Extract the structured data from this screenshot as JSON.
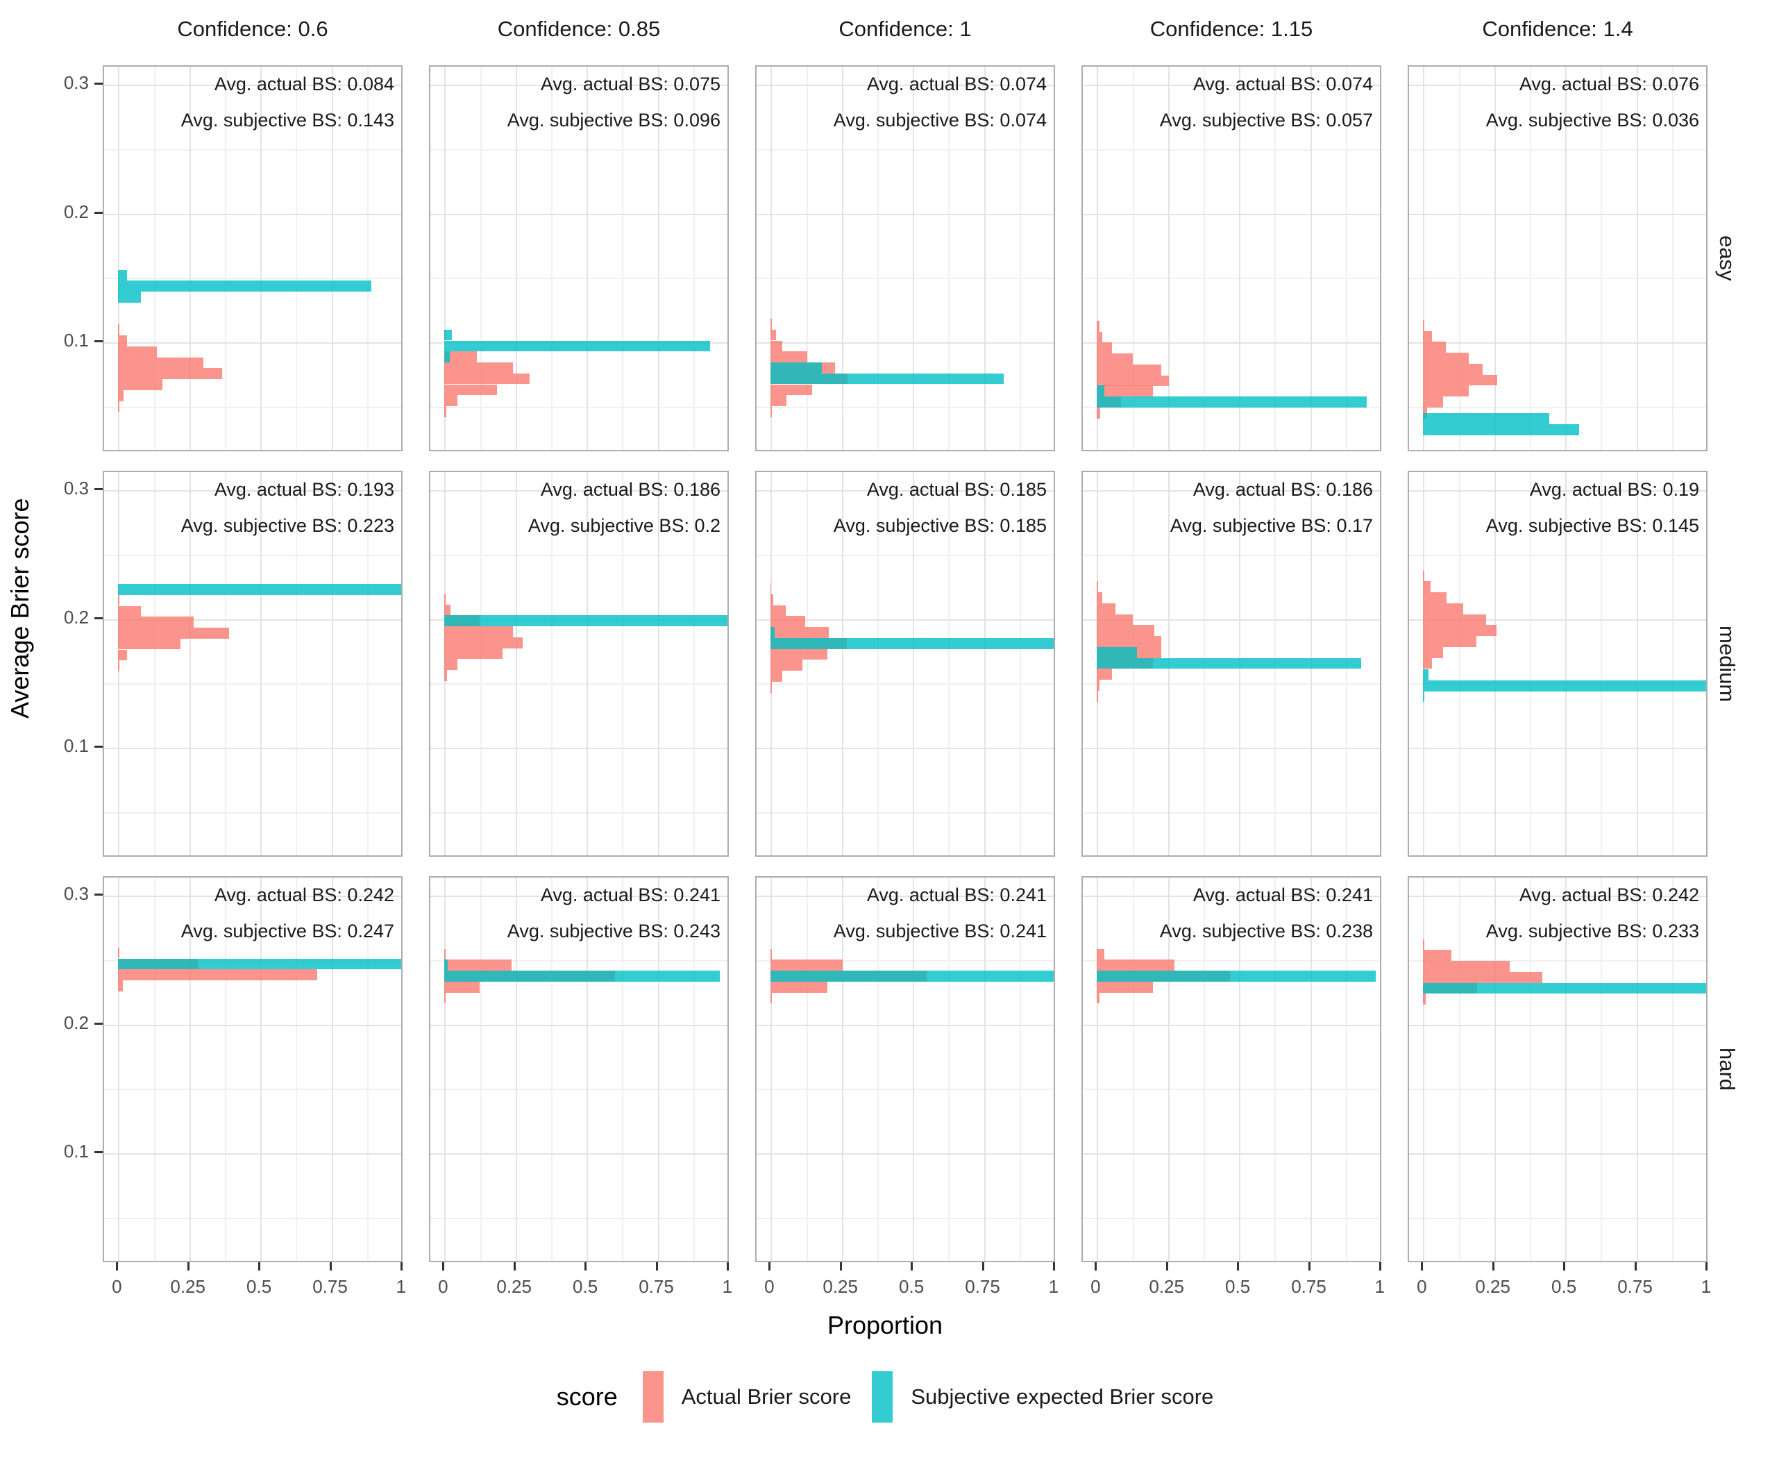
{
  "axis": {
    "x_title": "Proportion",
    "y_title": "Average Brier score",
    "x_ticks": [
      "0",
      "0.25",
      "0.5",
      "0.75",
      "1"
    ],
    "x_tick_values": [
      0,
      0.25,
      0.5,
      0.75,
      1
    ],
    "y_ticks": [
      "0.3",
      "0.2",
      "0.1"
    ],
    "y_tick_values": [
      0.3,
      0.2,
      0.1
    ]
  },
  "columns": [
    "Confidence: 0.6",
    "Confidence: 0.85",
    "Confidence: 1",
    "Confidence: 1.15",
    "Confidence: 1.4"
  ],
  "rows": [
    "easy",
    "medium",
    "hard"
  ],
  "legend": {
    "title": "score",
    "items": [
      {
        "label": "Actual Brier score",
        "color_key": "actual"
      },
      {
        "label": "Subjective expected Brier score",
        "color_key": "subjective"
      }
    ]
  },
  "colors": {
    "actual": "#F8766D",
    "subjective": "#00BFC4",
    "actual_fill": "rgba(248,118,109,0.78)",
    "subjective_fill": "rgba(0,191,196,0.80)",
    "grid_major": "#E3E3E3",
    "grid_minor": "#F0F0F0",
    "panel_border": "#ADADAD",
    "tick_label": "#4D4D4D"
  },
  "chart_data": {
    "type": "bar",
    "subtype": "horizontal-histogram-facet-grid",
    "facet_cols_label": "Confidence",
    "facet_col_values": [
      0.6,
      0.85,
      1,
      1.15,
      1.4
    ],
    "facet_row_values": [
      "easy",
      "medium",
      "hard"
    ],
    "x_range": [
      0,
      1
    ],
    "y_range": [
      0.013,
      0.314
    ],
    "binwidth": 0.0085,
    "annotation_labels": {
      "actual": "Avg. actual BS: ",
      "subjective": "Avg. subjective BS: "
    },
    "panels": [
      {
        "row": "easy",
        "col": "Confidence: 0.6",
        "avg_actual": 0.084,
        "avg_subjective": 0.143,
        "actual": [
          [
            0.1095,
            0.005
          ],
          [
            0.101,
            0.03
          ],
          [
            0.0925,
            0.135
          ],
          [
            0.084,
            0.3
          ],
          [
            0.0755,
            0.365
          ],
          [
            0.067,
            0.155
          ],
          [
            0.0585,
            0.02
          ],
          [
            0.05,
            0.005
          ]
        ],
        "subjective": [
          [
            0.152,
            0.03
          ],
          [
            0.1435,
            0.89
          ],
          [
            0.135,
            0.08
          ]
        ]
      },
      {
        "row": "easy",
        "col": "Confidence: 0.85",
        "avg_actual": 0.075,
        "avg_subjective": 0.096,
        "actual": [
          [
            0.1055,
            0.005
          ],
          [
            0.0885,
            0.115
          ],
          [
            0.08,
            0.24
          ],
          [
            0.0715,
            0.3
          ],
          [
            0.063,
            0.185
          ],
          [
            0.0545,
            0.047
          ],
          [
            0.046,
            0.007
          ]
        ],
        "subjective": [
          [
            0.1055,
            0.027
          ],
          [
            0.097,
            0.935
          ],
          [
            0.0885,
            0.02
          ]
        ]
      },
      {
        "row": "easy",
        "col": "Confidence: 1",
        "avg_actual": 0.074,
        "avg_subjective": 0.074,
        "actual": [
          [
            0.114,
            0.005
          ],
          [
            0.1055,
            0.02
          ],
          [
            0.097,
            0.042
          ],
          [
            0.0885,
            0.13
          ],
          [
            0.08,
            0.227
          ],
          [
            0.0715,
            0.27
          ],
          [
            0.063,
            0.145
          ],
          [
            0.0545,
            0.055
          ],
          [
            0.046,
            0.005
          ]
        ],
        "subjective": [
          [
            0.08,
            0.18
          ],
          [
            0.0715,
            0.82
          ]
        ]
      },
      {
        "row": "easy",
        "col": "Confidence: 1.15",
        "avg_actual": 0.074,
        "avg_subjective": 0.057,
        "actual": [
          [
            0.1125,
            0.01
          ],
          [
            0.104,
            0.02
          ],
          [
            0.0955,
            0.053
          ],
          [
            0.087,
            0.127
          ],
          [
            0.0785,
            0.226
          ],
          [
            0.07,
            0.254
          ],
          [
            0.062,
            0.197
          ],
          [
            0.0535,
            0.085
          ],
          [
            0.045,
            0.012
          ]
        ],
        "subjective": [
          [
            0.062,
            0.027
          ],
          [
            0.0535,
            0.95
          ]
        ]
      },
      {
        "row": "easy",
        "col": "Confidence: 1.4",
        "avg_actual": 0.076,
        "avg_subjective": 0.036,
        "actual": [
          [
            0.113,
            0.005
          ],
          [
            0.1045,
            0.03
          ],
          [
            0.096,
            0.08
          ],
          [
            0.0875,
            0.16
          ],
          [
            0.079,
            0.21
          ],
          [
            0.0705,
            0.26
          ],
          [
            0.062,
            0.16
          ],
          [
            0.0535,
            0.07
          ],
          [
            0.045,
            0.015
          ]
        ],
        "subjective": [
          [
            0.0405,
            0.445
          ],
          [
            0.032,
            0.55
          ]
        ]
      },
      {
        "row": "medium",
        "col": "Confidence: 0.6",
        "avg_actual": 0.193,
        "avg_subjective": 0.223,
        "actual": [
          [
            0.2145,
            0.005
          ],
          [
            0.206,
            0.08
          ],
          [
            0.1975,
            0.265
          ],
          [
            0.189,
            0.39
          ],
          [
            0.1805,
            0.22
          ],
          [
            0.172,
            0.03
          ],
          [
            0.1635,
            0.005
          ]
        ],
        "subjective": [
          [
            0.223,
            1.0
          ]
        ]
      },
      {
        "row": "medium",
        "col": "Confidence: 0.85",
        "avg_actual": 0.186,
        "avg_subjective": 0.2,
        "actual": [
          [
            0.2155,
            0.005
          ],
          [
            0.207,
            0.022
          ],
          [
            0.1985,
            0.125
          ],
          [
            0.19,
            0.24
          ],
          [
            0.1815,
            0.275
          ],
          [
            0.173,
            0.205
          ],
          [
            0.1645,
            0.047
          ],
          [
            0.156,
            0.01
          ]
        ],
        "subjective": [
          [
            0.1985,
            1.0
          ]
        ]
      },
      {
        "row": "medium",
        "col": "Confidence: 1",
        "avg_actual": 0.185,
        "avg_subjective": 0.185,
        "actual": [
          [
            0.2235,
            0.003
          ],
          [
            0.215,
            0.01
          ],
          [
            0.2065,
            0.052
          ],
          [
            0.198,
            0.122
          ],
          [
            0.1895,
            0.204
          ],
          [
            0.181,
            0.269
          ],
          [
            0.1725,
            0.2
          ],
          [
            0.164,
            0.112
          ],
          [
            0.1555,
            0.042
          ],
          [
            0.147,
            0.005
          ]
        ],
        "subjective": [
          [
            0.1895,
            0.015
          ],
          [
            0.181,
            1.0
          ]
        ]
      },
      {
        "row": "medium",
        "col": "Confidence: 1.15",
        "avg_actual": 0.186,
        "avg_subjective": 0.17,
        "actual": [
          [
            0.225,
            0.005
          ],
          [
            0.2165,
            0.02
          ],
          [
            0.208,
            0.066
          ],
          [
            0.1995,
            0.127
          ],
          [
            0.191,
            0.202
          ],
          [
            0.1825,
            0.227
          ],
          [
            0.174,
            0.227
          ],
          [
            0.1655,
            0.197
          ],
          [
            0.157,
            0.054
          ],
          [
            0.1485,
            0.01
          ],
          [
            0.14,
            0.004
          ]
        ],
        "subjective": [
          [
            0.174,
            0.14
          ],
          [
            0.1655,
            0.93
          ]
        ]
      },
      {
        "row": "medium",
        "col": "Confidence: 1.4",
        "avg_actual": 0.19,
        "avg_subjective": 0.145,
        "actual": [
          [
            0.2335,
            0.005
          ],
          [
            0.225,
            0.027
          ],
          [
            0.2165,
            0.082
          ],
          [
            0.208,
            0.142
          ],
          [
            0.1995,
            0.221
          ],
          [
            0.191,
            0.259
          ],
          [
            0.1825,
            0.187
          ],
          [
            0.174,
            0.07
          ],
          [
            0.1655,
            0.03
          ]
        ],
        "subjective": [
          [
            0.1565,
            0.02
          ],
          [
            0.148,
            1.0
          ],
          [
            0.1395,
            0.005
          ]
        ]
      },
      {
        "row": "hard",
        "col": "Confidence: 0.6",
        "avg_actual": 0.242,
        "avg_subjective": 0.247,
        "actual": [
          [
            0.2555,
            0.005
          ],
          [
            0.247,
            0.28
          ],
          [
            0.2385,
            0.7
          ],
          [
            0.23,
            0.017
          ]
        ],
        "subjective": [
          [
            0.247,
            1.0
          ]
        ]
      },
      {
        "row": "hard",
        "col": "Confidence: 0.85",
        "avg_actual": 0.241,
        "avg_subjective": 0.243,
        "actual": [
          [
            0.2545,
            0.005
          ],
          [
            0.246,
            0.236
          ],
          [
            0.2375,
            0.6
          ],
          [
            0.229,
            0.124
          ],
          [
            0.2205,
            0.005
          ]
        ],
        "subjective": [
          [
            0.246,
            0.012
          ],
          [
            0.2375,
            0.97
          ]
        ]
      },
      {
        "row": "hard",
        "col": "Confidence: 1",
        "avg_actual": 0.241,
        "avg_subjective": 0.241,
        "actual": [
          [
            0.2545,
            0.005
          ],
          [
            0.246,
            0.254
          ],
          [
            0.2375,
            0.55
          ],
          [
            0.229,
            0.199
          ],
          [
            0.2205,
            0.005
          ]
        ],
        "subjective": [
          [
            0.2375,
            1.0
          ]
        ]
      },
      {
        "row": "hard",
        "col": "Confidence: 1.15",
        "avg_actual": 0.241,
        "avg_subjective": 0.238,
        "actual": [
          [
            0.2545,
            0.027
          ],
          [
            0.246,
            0.273
          ],
          [
            0.2375,
            0.468
          ],
          [
            0.229,
            0.198
          ],
          [
            0.2205,
            0.01
          ]
        ],
        "subjective": [
          [
            0.2375,
            0.98
          ]
        ]
      },
      {
        "row": "hard",
        "col": "Confidence: 1.4",
        "avg_actual": 0.242,
        "avg_subjective": 0.233,
        "actual": [
          [
            0.262,
            0.005
          ],
          [
            0.2535,
            0.1
          ],
          [
            0.245,
            0.304
          ],
          [
            0.2365,
            0.42
          ],
          [
            0.228,
            0.19
          ],
          [
            0.2195,
            0.01
          ]
        ],
        "subjective": [
          [
            0.228,
            1.0
          ]
        ]
      }
    ]
  }
}
